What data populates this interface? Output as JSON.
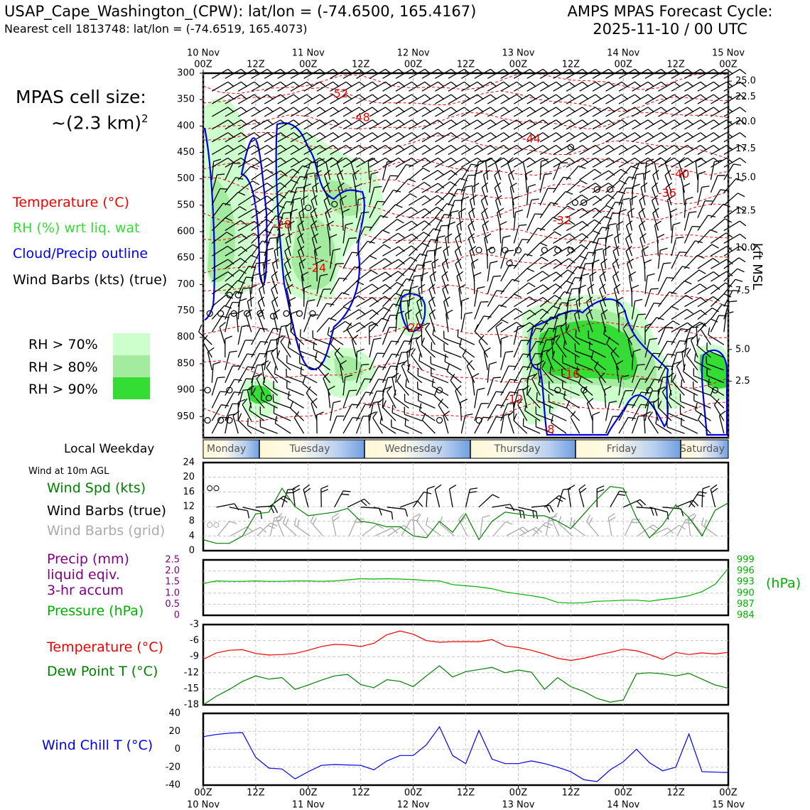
{
  "header": {
    "station": "USAP_Cape_Washington_(CPW): lat/lon = (-74.6500, 165.4167)",
    "nearest": "Nearest cell 1813748: lat/lon = (-74.6519, 165.4073)",
    "cycle_line1": "AMPS MPAS Forecast Cycle:",
    "cycle_line2": "2025-11-10 / 00 UTC"
  },
  "cell_size": {
    "line1": "MPAS cell size:",
    "line2": "~(2.3 km)",
    "sup": "2"
  },
  "legend_upper": {
    "temperature": "Temperature (°C)",
    "rh": "RH (%) wrt liq. wat",
    "cloud": "Cloud/Precip outline",
    "wind": "Wind Barbs (kts) (true)",
    "rh70": "RH > 70%",
    "rh80": "RH > 80%",
    "rh90": "RH > 90%"
  },
  "colors": {
    "temperature": "#ee0000",
    "rh": "#33cc33",
    "cloud": "#0000ee",
    "precip": "#800080",
    "pressure": "#00b000",
    "dewpoint": "#008000",
    "windspd": "#008000",
    "windchill": "#0000ee",
    "grid_barbs": "#aaaaaa",
    "rh70": "#ccffcc",
    "rh80": "#a3ec9f",
    "rh90": "#33dd33"
  },
  "top_time_ticks": [
    {
      "l1": "10 Nov",
      "l2": "00Z"
    },
    {
      "l1": "",
      "l2": "12Z"
    },
    {
      "l1": "11 Nov",
      "l2": "00Z"
    },
    {
      "l1": "",
      "l2": "12Z"
    },
    {
      "l1": "12 Nov",
      "l2": "00Z"
    },
    {
      "l1": "",
      "l2": "12Z"
    },
    {
      "l1": "13 Nov",
      "l2": "00Z"
    },
    {
      "l1": "",
      "l2": "12Z"
    },
    {
      "l1": "14 Nov",
      "l2": "00Z"
    },
    {
      "l1": "",
      "l2": "12Z"
    },
    {
      "l1": "15 Nov",
      "l2": "00Z"
    }
  ],
  "bottom_time_ticks": [
    {
      "l1": "00Z",
      "l2": "10 Nov"
    },
    {
      "l1": "12Z",
      "l2": ""
    },
    {
      "l1": "00Z",
      "l2": "11 Nov"
    },
    {
      "l1": "12Z",
      "l2": ""
    },
    {
      "l1": "00Z",
      "l2": "12 Nov"
    },
    {
      "l1": "12Z",
      "l2": ""
    },
    {
      "l1": "00Z",
      "l2": "13 Nov"
    },
    {
      "l1": "12Z",
      "l2": ""
    },
    {
      "l1": "00Z",
      "l2": "14 Nov"
    },
    {
      "l1": "12Z",
      "l2": ""
    },
    {
      "l1": "00Z",
      "l2": "15 Nov"
    }
  ],
  "weekday_bar": {
    "label": "Local Weekday",
    "days": [
      "Monday",
      "Tuesday",
      "Wednesday",
      "Thursday",
      "Friday",
      "Saturday"
    ]
  },
  "chart_data": [
    {
      "type": "heatmap",
      "name": "upper-air cross section",
      "x_hours_range": [
        0,
        120
      ],
      "pressure_ticks": [
        300,
        350,
        400,
        450,
        500,
        550,
        600,
        650,
        700,
        750,
        800,
        850,
        900,
        950
      ],
      "ylim": [
        990,
        300
      ],
      "right_axis_label": "kft MSL",
      "right_ticks": [
        {
          "p": 315,
          "label": "25.0"
        },
        {
          "p": 345,
          "label": "22.5"
        },
        {
          "p": 392,
          "label": "20.0"
        },
        {
          "p": 443,
          "label": "17.5"
        },
        {
          "p": 498,
          "label": "15.0"
        },
        {
          "p": 561,
          "label": "12.5"
        },
        {
          "p": 631,
          "label": "10.0"
        },
        {
          "p": 712,
          "label": "7.5"
        },
        {
          "p": 823,
          "label": "5.0"
        },
        {
          "p": 883,
          "label": "2.5"
        }
      ],
      "temperature_labels": [
        {
          "t": 31,
          "p": 340,
          "label": "-52"
        },
        {
          "t": 36,
          "p": 385,
          "label": "-48"
        },
        {
          "t": 75,
          "p": 425,
          "label": "-44"
        },
        {
          "t": 109,
          "p": 492,
          "label": "-40"
        },
        {
          "t": 106,
          "p": 528,
          "label": "-36"
        },
        {
          "t": 82,
          "p": 580,
          "label": "-32"
        },
        {
          "t": 18,
          "p": 588,
          "label": "-28"
        },
        {
          "t": 26,
          "p": 670,
          "label": "-24"
        },
        {
          "t": 48,
          "p": 783,
          "label": "-20"
        },
        {
          "t": 84,
          "p": 871,
          "label": "-16"
        },
        {
          "t": 71,
          "p": 918,
          "label": "-12"
        },
        {
          "t": 79,
          "p": 975,
          "label": "-8"
        }
      ]
    },
    {
      "type": "line",
      "name": "surface wind",
      "title": "Wind at 10m AGL",
      "series_label": "Wind Spd (kts)",
      "barbs_true_label": "Wind Barbs (true)",
      "barbs_grid_label": "Wind Barbs (grid)",
      "yticks": [
        0,
        4,
        8,
        12,
        16,
        20,
        24
      ],
      "ylim": [
        0,
        24
      ],
      "x_hours": [
        0,
        3,
        6,
        9,
        12,
        15,
        18,
        21,
        24,
        27,
        30,
        33,
        36,
        39,
        42,
        45,
        48,
        51,
        54,
        57,
        60,
        63,
        66,
        69,
        72,
        75,
        78,
        81,
        84,
        87,
        90,
        93,
        96,
        99,
        102,
        105,
        108,
        111,
        114,
        117,
        120
      ],
      "values": [
        3,
        2,
        2,
        4,
        10,
        10.5,
        17,
        12,
        9.5,
        10,
        10.5,
        11.5,
        8,
        7.5,
        6.5,
        6.5,
        4,
        3.5,
        8,
        5,
        10,
        3,
        8,
        10.5,
        10,
        9.5,
        9.5,
        8,
        6,
        10,
        14,
        17.5,
        17,
        9,
        3.5,
        7,
        12.5,
        9,
        4,
        11,
        13
      ]
    },
    {
      "type": "line",
      "name": "precip and pressure",
      "precip_label_lines": [
        "Precip (mm)",
        "liquid eqiv.",
        "3-hr accum"
      ],
      "pressure_label": "Pressure (hPa)",
      "precip_ticks": [
        "2.5",
        "2.0",
        "1.5",
        "1.0",
        "0.5",
        "0"
      ],
      "pressure_ticks": [
        "999",
        "996",
        "993",
        "990",
        "987",
        "984"
      ],
      "pressure_unit": "(hPa)",
      "plim": [
        984,
        999
      ],
      "x_hours": [
        0,
        3,
        6,
        9,
        12,
        15,
        18,
        21,
        24,
        27,
        30,
        33,
        36,
        39,
        42,
        45,
        48,
        51,
        54,
        57,
        60,
        63,
        66,
        69,
        72,
        75,
        78,
        81,
        84,
        87,
        90,
        93,
        96,
        99,
        102,
        105,
        108,
        111,
        114,
        117,
        120
      ],
      "pressure": [
        992.6,
        993.3,
        993.2,
        993.2,
        993.3,
        993.2,
        993.2,
        993.3,
        993.3,
        993.2,
        993.3,
        993.6,
        993.9,
        993.8,
        993.9,
        993.8,
        993.7,
        993.4,
        993.3,
        992.3,
        992.0,
        991.7,
        991.2,
        990.3,
        989.8,
        989.3,
        988.7,
        987.5,
        987.3,
        987.4,
        987.8,
        987.9,
        988.1,
        988.1,
        987.8,
        988.3,
        988.7,
        989.3,
        990.4,
        992.4,
        996.7
      ],
      "precip": []
    },
    {
      "type": "line",
      "name": "temperature and dew point",
      "series": [
        {
          "name": "Temperature (°C)",
          "values": [
            -9.5,
            -8.3,
            -7.8,
            -7.7,
            -8.4,
            -8.7,
            -8.6,
            -8.4,
            -7.8,
            -7.1,
            -6.7,
            -6.8,
            -7.1,
            -6.5,
            -4.9,
            -4.2,
            -4.8,
            -6.0,
            -6.3,
            -6.2,
            -6.2,
            -6.2,
            -5.8,
            -7.0,
            -7.3,
            -7.8,
            -8.5,
            -9.3,
            -9.7,
            -9.3,
            -8.7,
            -8.2,
            -7.6,
            -7.9,
            -8.6,
            -9.5,
            -8.2,
            -8.6,
            -8.3,
            -8.5,
            -8.2
          ]
        },
        {
          "name": "Dew Point T (°C)",
          "values": [
            -18.0,
            -16.4,
            -15.1,
            -13.6,
            -12.6,
            -13.2,
            -12.9,
            -15.1,
            -14.3,
            -13.4,
            -12.6,
            -12.3,
            -14.2,
            -14.8,
            -13.3,
            -13.6,
            -14.6,
            -12.6,
            -10.7,
            -12.8,
            -11.8,
            -11.4,
            -11.0,
            -12.0,
            -11.5,
            -11.9,
            -15.1,
            -12.9,
            -14.6,
            -15.5,
            -16.8,
            -17.5,
            -17.1,
            -12.2,
            -12.0,
            -12.2,
            -12.6,
            -12.1,
            -13.2,
            -14.3,
            -14.9
          ]
        }
      ],
      "yticks": [
        -3,
        -6,
        -9,
        -12,
        -15,
        -18
      ],
      "ylim": [
        -18,
        -3
      ]
    },
    {
      "type": "line",
      "name": "wind chill",
      "series_label": "Wind Chill T (°C)",
      "yticks": [
        40,
        20,
        0,
        -20,
        -40
      ],
      "ylim": [
        -40,
        40
      ],
      "values": [
        14,
        16.5,
        18,
        18.5,
        -9,
        -21,
        -22,
        -33,
        -25,
        -18,
        -17,
        -17.5,
        -18,
        -23,
        -13,
        -7,
        -7,
        5,
        25,
        -7,
        -16,
        21,
        -11,
        -16,
        -16,
        -13,
        -16,
        -20,
        -25,
        -34,
        -36,
        -23,
        -14,
        0,
        -15,
        -24,
        -20,
        17,
        -25,
        -25.5,
        -26
      ]
    }
  ]
}
